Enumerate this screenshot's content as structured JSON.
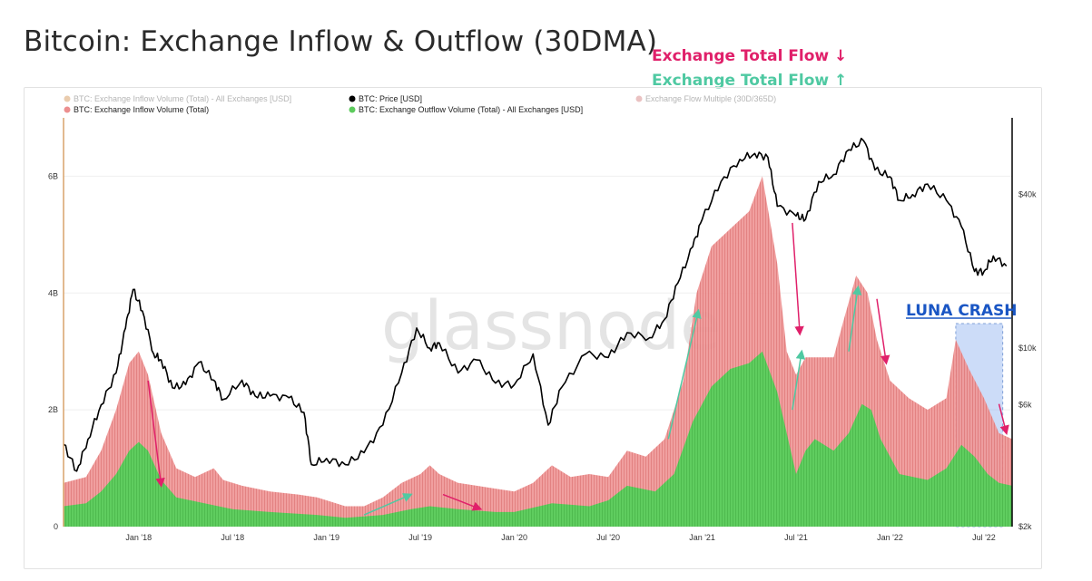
{
  "title": "Bitcoin: Exchange Inflow & Outflow (30DMA)",
  "notes": {
    "down": "Exchange Total Flow ↓",
    "up": "Exchange Total Flow ↑"
  },
  "watermark": "glassnode",
  "annotation": "LUNA CRASH",
  "colors": {
    "inflow": "#ec8f8f",
    "outflow": "#5ccb5c",
    "price": "#000000",
    "arrow_down": "#e0206a",
    "arrow_up": "#4fc9a2",
    "luna_box": "#8fb1f0"
  },
  "chart_data": {
    "type": "area",
    "legend": [
      {
        "label": "BTC: Exchange Inflow Volume (Total) - All Exchanges [USD]",
        "color": "#d9a36b",
        "muted": true
      },
      {
        "label": "BTC: Exchange Inflow Volume (Total)",
        "color": "#ec8f8f",
        "muted": false
      },
      {
        "label": "BTC: Price [USD]",
        "color": "#000000",
        "muted": false
      },
      {
        "label": "BTC: Exchange Outflow Volume (Total) - All Exchanges [USD]",
        "color": "#5ccb5c",
        "muted": false
      },
      {
        "label": "Exchange Flow Multiple (30D/365D)",
        "color": "#d98f8f",
        "muted": true
      }
    ],
    "x_ticks": [
      {
        "label": "Jan '18",
        "t": 2018.0
      },
      {
        "label": "Jul '18",
        "t": 2018.5
      },
      {
        "label": "Jan '19",
        "t": 2019.0
      },
      {
        "label": "Jul '19",
        "t": 2019.5
      },
      {
        "label": "Jan '20",
        "t": 2020.0
      },
      {
        "label": "Jul '20",
        "t": 2020.5
      },
      {
        "label": "Jan '21",
        "t": 2021.0
      },
      {
        "label": "Jul '21",
        "t": 2021.5
      },
      {
        "label": "Jan '22",
        "t": 2022.0
      },
      {
        "label": "Jul '22",
        "t": 2022.5
      }
    ],
    "x_range": [
      2017.6,
      2022.65
    ],
    "y_left": {
      "ticks": [
        "0",
        "2B",
        "4B",
        "6B"
      ],
      "values": [
        0,
        2000000000,
        4000000000,
        6000000000
      ],
      "range": [
        0,
        7000000000
      ]
    },
    "y_right": {
      "scale": "log",
      "ticks": [
        "$2k",
        "$6k",
        "$10k",
        "$40k"
      ],
      "values": [
        2000,
        6000,
        10000,
        40000
      ],
      "range": [
        2000,
        80000
      ]
    },
    "series": [
      {
        "name": "BTC: Exchange Inflow Volume (Total)",
        "kind": "area",
        "points": [
          [
            2017.6,
            0.75
          ],
          [
            2017.72,
            0.85
          ],
          [
            2017.8,
            1.3
          ],
          [
            2017.88,
            2.0
          ],
          [
            2017.95,
            2.8
          ],
          [
            2018.0,
            3.0
          ],
          [
            2018.05,
            2.6
          ],
          [
            2018.12,
            1.6
          ],
          [
            2018.2,
            1.0
          ],
          [
            2018.3,
            0.85
          ],
          [
            2018.4,
            1.0
          ],
          [
            2018.45,
            0.8
          ],
          [
            2018.55,
            0.7
          ],
          [
            2018.7,
            0.6
          ],
          [
            2018.85,
            0.55
          ],
          [
            2018.95,
            0.5
          ],
          [
            2019.1,
            0.35
          ],
          [
            2019.2,
            0.35
          ],
          [
            2019.3,
            0.5
          ],
          [
            2019.4,
            0.75
          ],
          [
            2019.5,
            0.9
          ],
          [
            2019.55,
            1.05
          ],
          [
            2019.6,
            0.9
          ],
          [
            2019.7,
            0.75
          ],
          [
            2019.8,
            0.7
          ],
          [
            2019.9,
            0.65
          ],
          [
            2020.0,
            0.6
          ],
          [
            2020.1,
            0.75
          ],
          [
            2020.2,
            1.05
          ],
          [
            2020.3,
            0.85
          ],
          [
            2020.4,
            0.9
          ],
          [
            2020.5,
            0.85
          ],
          [
            2020.6,
            1.3
          ],
          [
            2020.7,
            1.2
          ],
          [
            2020.8,
            1.5
          ],
          [
            2020.9,
            2.5
          ],
          [
            2020.97,
            4.0
          ],
          [
            2021.05,
            4.8
          ],
          [
            2021.15,
            5.1
          ],
          [
            2021.25,
            5.4
          ],
          [
            2021.32,
            6.0
          ],
          [
            2021.4,
            4.5
          ],
          [
            2021.45,
            3.0
          ],
          [
            2021.5,
            2.6
          ],
          [
            2021.55,
            2.9
          ],
          [
            2021.6,
            2.9
          ],
          [
            2021.7,
            2.9
          ],
          [
            2021.75,
            3.5
          ],
          [
            2021.82,
            4.3
          ],
          [
            2021.88,
            4.0
          ],
          [
            2021.93,
            3.2
          ],
          [
            2022.0,
            2.5
          ],
          [
            2022.1,
            2.2
          ],
          [
            2022.2,
            2.0
          ],
          [
            2022.3,
            2.2
          ],
          [
            2022.35,
            3.2
          ],
          [
            2022.42,
            2.7
          ],
          [
            2022.5,
            2.2
          ],
          [
            2022.58,
            1.6
          ],
          [
            2022.65,
            1.5
          ]
        ]
      },
      {
        "name": "BTC: Exchange Outflow Volume (Total) - All Exchanges [USD]",
        "kind": "area",
        "points": [
          [
            2017.6,
            0.35
          ],
          [
            2017.72,
            0.4
          ],
          [
            2017.8,
            0.6
          ],
          [
            2017.88,
            0.9
          ],
          [
            2017.95,
            1.3
          ],
          [
            2018.0,
            1.45
          ],
          [
            2018.05,
            1.3
          ],
          [
            2018.12,
            0.8
          ],
          [
            2018.2,
            0.5
          ],
          [
            2018.35,
            0.4
          ],
          [
            2018.5,
            0.3
          ],
          [
            2018.7,
            0.25
          ],
          [
            2018.95,
            0.2
          ],
          [
            2019.1,
            0.15
          ],
          [
            2019.3,
            0.2
          ],
          [
            2019.45,
            0.3
          ],
          [
            2019.55,
            0.35
          ],
          [
            2019.7,
            0.3
          ],
          [
            2019.9,
            0.25
          ],
          [
            2020.0,
            0.25
          ],
          [
            2020.2,
            0.4
          ],
          [
            2020.4,
            0.35
          ],
          [
            2020.5,
            0.45
          ],
          [
            2020.6,
            0.7
          ],
          [
            2020.75,
            0.6
          ],
          [
            2020.85,
            0.9
          ],
          [
            2020.95,
            1.8
          ],
          [
            2021.05,
            2.4
          ],
          [
            2021.15,
            2.7
          ],
          [
            2021.25,
            2.8
          ],
          [
            2021.32,
            3.0
          ],
          [
            2021.4,
            2.3
          ],
          [
            2021.45,
            1.6
          ],
          [
            2021.5,
            0.9
          ],
          [
            2021.55,
            1.3
          ],
          [
            2021.6,
            1.5
          ],
          [
            2021.7,
            1.3
          ],
          [
            2021.78,
            1.6
          ],
          [
            2021.85,
            2.1
          ],
          [
            2021.9,
            2.0
          ],
          [
            2021.95,
            1.5
          ],
          [
            2022.05,
            0.9
          ],
          [
            2022.2,
            0.8
          ],
          [
            2022.3,
            1.0
          ],
          [
            2022.38,
            1.4
          ],
          [
            2022.45,
            1.2
          ],
          [
            2022.52,
            0.9
          ],
          [
            2022.58,
            0.75
          ],
          [
            2022.65,
            0.7
          ]
        ]
      },
      {
        "name": "BTC: Price [USD]",
        "kind": "line",
        "points": [
          [
            2017.6,
            4200
          ],
          [
            2017.67,
            3300
          ],
          [
            2017.73,
            4400
          ],
          [
            2017.8,
            6000
          ],
          [
            2017.88,
            8000
          ],
          [
            2017.93,
            12000
          ],
          [
            2017.97,
            17000
          ],
          [
            2018.02,
            14000
          ],
          [
            2018.08,
            9500
          ],
          [
            2018.12,
            9000
          ],
          [
            2018.18,
            7000
          ],
          [
            2018.25,
            7200
          ],
          [
            2018.32,
            8800
          ],
          [
            2018.4,
            7500
          ],
          [
            2018.45,
            6300
          ],
          [
            2018.55,
            7500
          ],
          [
            2018.62,
            6500
          ],
          [
            2018.7,
            6500
          ],
          [
            2018.8,
            6400
          ],
          [
            2018.88,
            5600
          ],
          [
            2018.92,
            3500
          ],
          [
            2019.0,
            3700
          ],
          [
            2019.1,
            3500
          ],
          [
            2019.2,
            3900
          ],
          [
            2019.3,
            5000
          ],
          [
            2019.4,
            8000
          ],
          [
            2019.48,
            12000
          ],
          [
            2019.55,
            10000
          ],
          [
            2019.6,
            10500
          ],
          [
            2019.7,
            8000
          ],
          [
            2019.8,
            9000
          ],
          [
            2019.9,
            7300
          ],
          [
            2020.0,
            7200
          ],
          [
            2020.1,
            9500
          ],
          [
            2020.18,
            5000
          ],
          [
            2020.25,
            7000
          ],
          [
            2020.38,
            9500
          ],
          [
            2020.5,
            9200
          ],
          [
            2020.6,
            11500
          ],
          [
            2020.72,
            11000
          ],
          [
            2020.8,
            13000
          ],
          [
            2020.87,
            18000
          ],
          [
            2020.95,
            25000
          ],
          [
            2021.0,
            32000
          ],
          [
            2021.1,
            45000
          ],
          [
            2021.2,
            55000
          ],
          [
            2021.28,
            58000
          ],
          [
            2021.35,
            56000
          ],
          [
            2021.4,
            36000
          ],
          [
            2021.5,
            33000
          ],
          [
            2021.55,
            32000
          ],
          [
            2021.62,
            45000
          ],
          [
            2021.7,
            48000
          ],
          [
            2021.78,
            60000
          ],
          [
            2021.86,
            65000
          ],
          [
            2021.92,
            50000
          ],
          [
            2022.0,
            47000
          ],
          [
            2022.05,
            38000
          ],
          [
            2022.12,
            40000
          ],
          [
            2022.2,
            44000
          ],
          [
            2022.3,
            38000
          ],
          [
            2022.38,
            30000
          ],
          [
            2022.45,
            20000
          ],
          [
            2022.5,
            20000
          ],
          [
            2022.55,
            23000
          ],
          [
            2022.62,
            21000
          ]
        ]
      }
    ],
    "highlight": {
      "label": "LUNA CRASH",
      "x_range": [
        2022.35,
        2022.6
      ]
    },
    "arrows_down": [
      [
        2018.05,
        2.5,
        2018.12,
        0.7
      ],
      [
        2019.62,
        0.55,
        2019.82,
        0.3
      ],
      [
        2021.48,
        5.2,
        2021.52,
        3.3
      ],
      [
        2021.93,
        3.9,
        2021.98,
        2.8
      ],
      [
        2022.58,
        2.1,
        2022.62,
        1.6
      ]
    ],
    "arrows_up": [
      [
        2019.2,
        0.2,
        2019.45,
        0.55
      ],
      [
        2020.82,
        1.5,
        2020.98,
        3.7
      ],
      [
        2021.48,
        2.0,
        2021.53,
        3.0
      ],
      [
        2021.78,
        3.0,
        2021.83,
        4.1
      ]
    ]
  }
}
